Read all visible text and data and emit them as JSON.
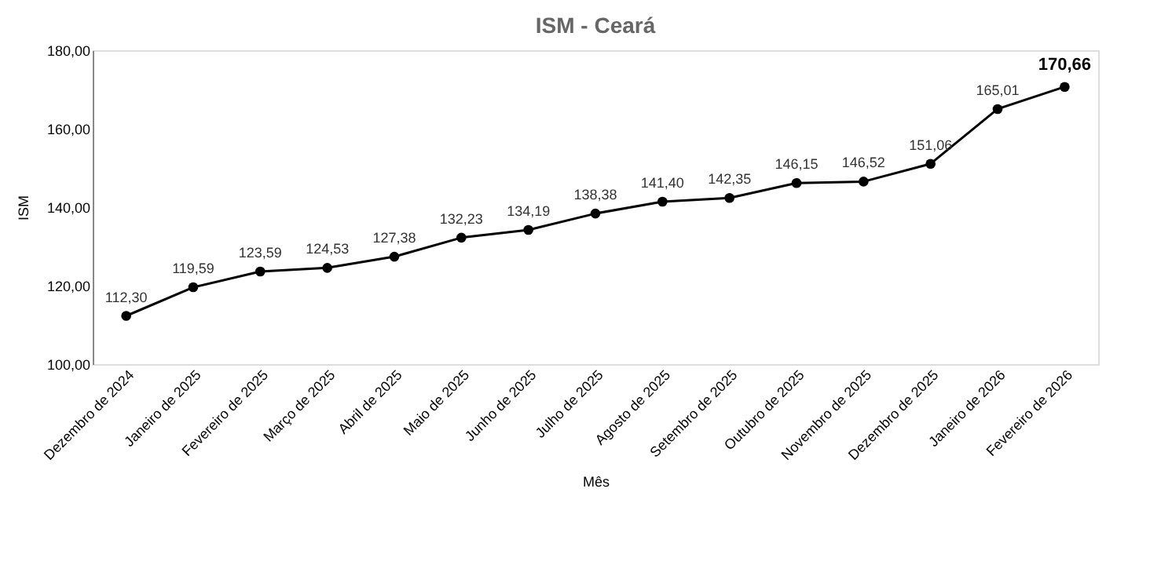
{
  "chart_data": {
    "type": "line",
    "title": "ISM - Ceará",
    "xlabel": "Mês",
    "ylabel": "ISM",
    "categories": [
      "Dezembro de 2024",
      "Janeiro de 2025",
      "Fevereiro de 2025",
      "Março de 2025",
      "Abril de 2025",
      "Maio de 2025",
      "Junho de 2025",
      "Julho de 2025",
      "Agosto de 2025",
      "Setembro de 2025",
      "Outubro de 2025",
      "Novembro de 2025",
      "Dezembro de 2025",
      "Janeiro de 2026",
      "Fevereiro de 2026"
    ],
    "series": [
      {
        "color": "#000000",
        "values": [
          112.3,
          119.59,
          123.59,
          124.53,
          127.38,
          132.23,
          134.19,
          138.38,
          141.4,
          142.35,
          146.15,
          146.52,
          151.06,
          165.01,
          170.66
        ],
        "value_labels": [
          "112,30",
          "119,59",
          "123,59",
          "124,53",
          "127,38",
          "132,23",
          "134,19",
          "138,38",
          "141,40",
          "142,35",
          "146,15",
          "146,52",
          "151,06",
          "165,01",
          "170,66"
        ]
      }
    ],
    "ylim": [
      100,
      180
    ],
    "yticks": [
      {
        "value": 100,
        "label": "100,00"
      },
      {
        "value": 120,
        "label": "120,00"
      },
      {
        "value": 140,
        "label": "140,00"
      },
      {
        "value": 160,
        "label": "160,00"
      },
      {
        "value": 180,
        "label": "180,00"
      }
    ],
    "marker": "circle",
    "line_style": "solid",
    "grid": false
  }
}
